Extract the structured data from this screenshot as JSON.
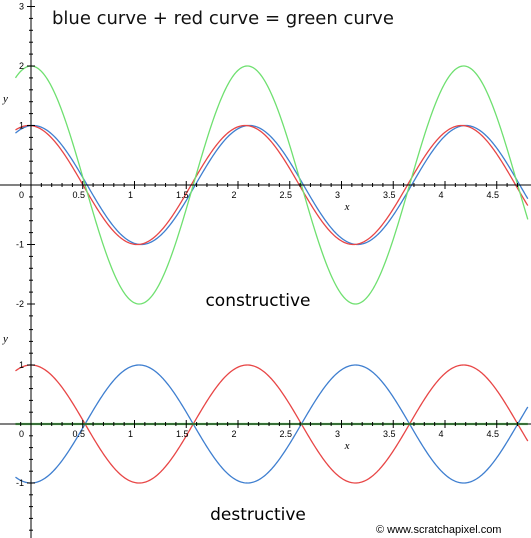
{
  "title": "blue curve + red curve = green curve",
  "copyright": "© www.scratchapixel.com",
  "colors": {
    "blue": "#3f7fd0",
    "red": "#e84646",
    "green": "#6fe070",
    "axis": "#000000"
  },
  "chart_data": [
    {
      "type": "line",
      "caption": "constructive",
      "xlabel": "x",
      "ylabel": "y",
      "xlim": [
        -0.15,
        4.75
      ],
      "ylim": [
        -2.2,
        2.9
      ],
      "x_ticks": [
        "0",
        "0.5",
        "1",
        "1.5",
        "2",
        "2.5",
        "3",
        "3.5",
        "4",
        "4.5"
      ],
      "y_ticks": [
        "-2",
        "-1",
        "1",
        "2",
        "3"
      ],
      "grid": false,
      "series": [
        {
          "color": "blue",
          "amplitude": 1,
          "period": 2.09,
          "phase_shift": 0.02
        },
        {
          "color": "red",
          "amplitude": 1,
          "period": 2.09,
          "phase_shift": -0.02
        },
        {
          "color": "green",
          "amplitude": 2,
          "period": 2.09,
          "phase_shift": 0
        }
      ]
    },
    {
      "type": "line",
      "caption": "destructive",
      "xlabel": "x",
      "ylabel": "y",
      "xlim": [
        -0.15,
        4.75
      ],
      "ylim": [
        -1.9,
        1.5
      ],
      "x_ticks": [
        "0",
        "0.5",
        "1",
        "1.5",
        "2",
        "2.5",
        "3",
        "3.5",
        "4",
        "4.5"
      ],
      "y_ticks": [
        "-1",
        "1"
      ],
      "grid": false,
      "series": [
        {
          "color": "blue",
          "amplitude": -1,
          "period": 2.09,
          "phase_shift": 0
        },
        {
          "color": "red",
          "amplitude": 1,
          "period": 2.09,
          "phase_shift": 0
        },
        {
          "color": "green",
          "amplitude": 0,
          "period": 2.09,
          "phase_shift": 0
        }
      ]
    }
  ]
}
